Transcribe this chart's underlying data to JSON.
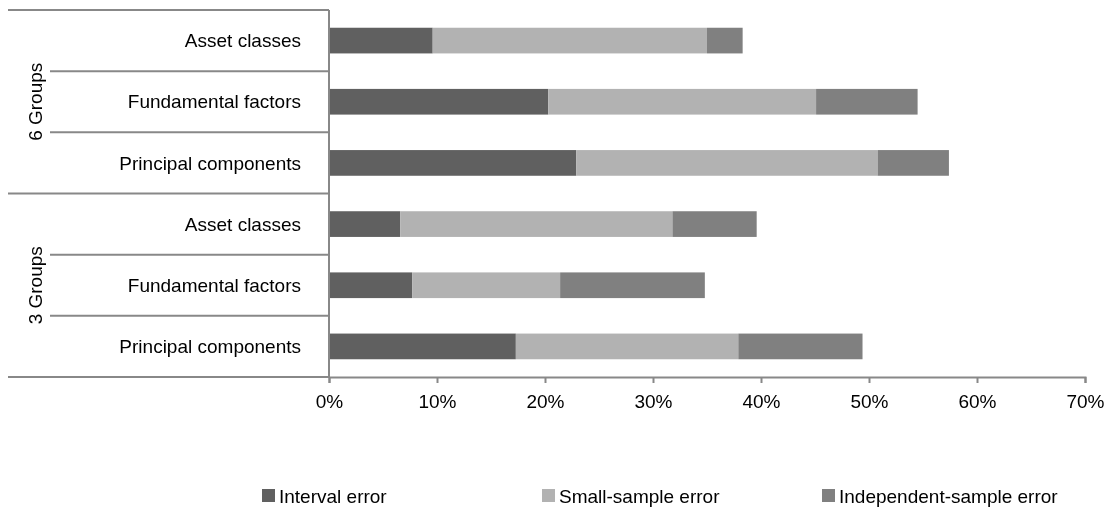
{
  "chart_data": {
    "type": "bar",
    "orientation": "horizontal",
    "stacked": true,
    "categories": [
      "Asset classes",
      "Fundamental factors",
      "Principal components",
      "Asset classes",
      "Fundamental factors",
      "Principal components"
    ],
    "series": [
      {
        "name": "Interval error",
        "color": "#606060",
        "values": [
          9.6,
          20.3,
          22.9,
          6.6,
          7.7,
          17.3
        ]
      },
      {
        "name": "Small-sample error",
        "color": "#b2b2b2",
        "values": [
          25.4,
          24.8,
          27.9,
          25.2,
          13.7,
          20.6
        ]
      },
      {
        "name": "Independent-sample error",
        "color": "#808080",
        "values": [
          3.3,
          9.4,
          6.6,
          7.8,
          13.4,
          11.5
        ]
      }
    ],
    "xlim": [
      0,
      70
    ],
    "xticks": [
      {
        "value": 0,
        "label": "0%"
      },
      {
        "value": 10,
        "label": "10%"
      },
      {
        "value": 20,
        "label": "20%"
      },
      {
        "value": 30,
        "label": "30%"
      },
      {
        "value": 40,
        "label": "40%"
      },
      {
        "value": 50,
        "label": "50%"
      },
      {
        "value": 60,
        "label": "60%"
      },
      {
        "value": 70,
        "label": "70%"
      }
    ],
    "annotations": [
      "6 Groups",
      "3 Groups"
    ],
    "legend": "bottom"
  }
}
